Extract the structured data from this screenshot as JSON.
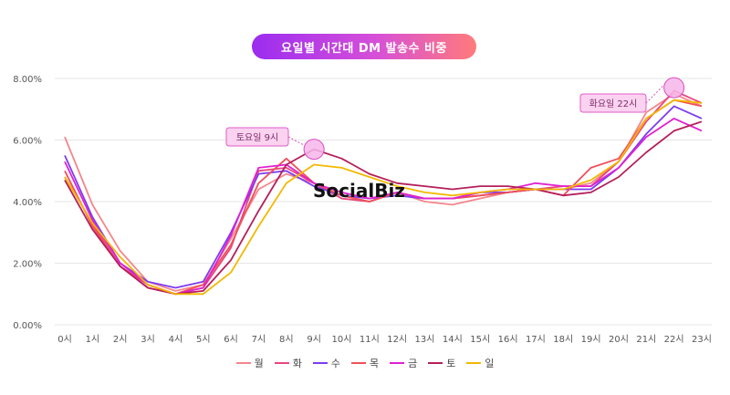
{
  "title": "요일별 시간대 DM 발송수 비중",
  "watermark": "SocialBiz",
  "annotations": [
    {
      "label": "토요일 9시",
      "x": "9시",
      "y": 5.7
    },
    {
      "label": "화요일 22시",
      "x": "22시",
      "y": 7.7
    }
  ],
  "chart_data": {
    "type": "line",
    "title": "요일별 시간대 DM 발송수 비중",
    "xlabel": "",
    "ylabel": "",
    "ylim": [
      0,
      8
    ],
    "yticks": [
      "0.00%",
      "2.00%",
      "4.00%",
      "6.00%",
      "8.00%"
    ],
    "grid": true,
    "legend": "bottom",
    "categories": [
      "0시",
      "1시",
      "2시",
      "3시",
      "4시",
      "5시",
      "6시",
      "7시",
      "8시",
      "9시",
      "10시",
      "11시",
      "12시",
      "13시",
      "14시",
      "15시",
      "16시",
      "17시",
      "18시",
      "19시",
      "20시",
      "21시",
      "22시",
      "23시"
    ],
    "series": [
      {
        "name": "월",
        "color": "#f4868c",
        "values": [
          6.1,
          3.9,
          2.4,
          1.4,
          1.1,
          1.3,
          2.8,
          4.4,
          4.9,
          4.6,
          4.2,
          4.0,
          4.3,
          4.0,
          3.9,
          4.1,
          4.3,
          4.4,
          4.4,
          4.6,
          5.3,
          6.9,
          7.5,
          7.1
        ]
      },
      {
        "name": "화",
        "color": "#e8467c",
        "values": [
          4.8,
          3.3,
          1.9,
          1.3,
          1.0,
          1.2,
          2.5,
          5.0,
          5.1,
          4.6,
          4.1,
          4.0,
          4.3,
          4.1,
          4.1,
          4.2,
          4.3,
          4.4,
          4.5,
          4.5,
          5.3,
          6.6,
          7.6,
          7.2
        ]
      },
      {
        "name": "수",
        "color": "#7b3df0",
        "values": [
          5.5,
          3.5,
          2.0,
          1.4,
          1.2,
          1.4,
          3.0,
          4.9,
          5.0,
          4.5,
          4.2,
          4.1,
          4.2,
          4.1,
          4.1,
          4.3,
          4.3,
          4.4,
          4.4,
          4.4,
          5.1,
          6.2,
          7.1,
          6.7
        ]
      },
      {
        "name": "목",
        "color": "#f0505a",
        "values": [
          5.0,
          3.2,
          1.9,
          1.2,
          1.0,
          1.3,
          2.6,
          4.6,
          5.4,
          4.6,
          4.2,
          4.0,
          4.3,
          4.1,
          4.1,
          4.2,
          4.3,
          4.4,
          4.2,
          5.1,
          5.4,
          6.7,
          7.3,
          7.1
        ]
      },
      {
        "name": "금",
        "color": "#e021d0",
        "values": [
          5.3,
          3.4,
          2.0,
          1.3,
          1.0,
          1.2,
          2.9,
          5.1,
          5.2,
          4.6,
          4.3,
          4.1,
          4.3,
          4.1,
          4.1,
          4.3,
          4.4,
          4.6,
          4.5,
          4.5,
          5.1,
          6.1,
          6.7,
          6.3
        ]
      },
      {
        "name": "토",
        "color": "#b51f5a",
        "values": [
          4.7,
          3.1,
          1.9,
          1.2,
          1.0,
          1.1,
          2.1,
          3.7,
          5.2,
          5.7,
          5.4,
          4.9,
          4.6,
          4.5,
          4.4,
          4.5,
          4.5,
          4.4,
          4.2,
          4.3,
          4.8,
          5.6,
          6.3,
          6.6
        ]
      },
      {
        "name": "일",
        "color": "#f2b800",
        "values": [
          4.8,
          3.3,
          2.2,
          1.3,
          1.0,
          1.0,
          1.7,
          3.2,
          4.6,
          5.2,
          5.1,
          4.8,
          4.5,
          4.3,
          4.2,
          4.3,
          4.4,
          4.4,
          4.4,
          4.7,
          5.3,
          6.7,
          7.3,
          7.2
        ]
      }
    ]
  }
}
